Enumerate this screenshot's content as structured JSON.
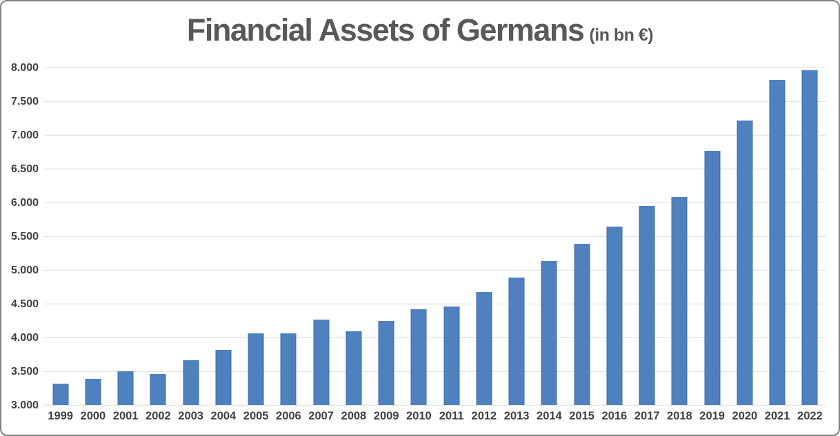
{
  "title": {
    "main": "Financial Assets of Germans",
    "sub": "(in bn €)"
  },
  "colors": {
    "bar": "#4e81bd",
    "bar_edge": "#3c6da8",
    "grid": "#dcdcdc",
    "text": "#404040",
    "title": "#595959",
    "frame_border": "#7f7f7f"
  },
  "chart_data": {
    "type": "bar",
    "title": "Financial Assets of Germans (in bn €)",
    "xlabel": "",
    "ylabel": "",
    "categories": [
      "1999",
      "2000",
      "2001",
      "2002",
      "2003",
      "2004",
      "2005",
      "2006",
      "2007",
      "2008",
      "2009",
      "2010",
      "2011",
      "2012",
      "2013",
      "2014",
      "2015",
      "2016",
      "2017",
      "2018",
      "2019",
      "2020",
      "2021",
      "2022"
    ],
    "values": [
      3320,
      3390,
      3500,
      3460,
      3660,
      3820,
      4060,
      4060,
      4270,
      4090,
      4250,
      4420,
      4460,
      4670,
      4890,
      5130,
      5390,
      5640,
      5950,
      6080,
      6770,
      7210,
      7820,
      7960
    ],
    "ylim": [
      3000,
      8000
    ],
    "ytick_step": 500,
    "ytick_labels": [
      "3.000",
      "3.500",
      "4.000",
      "4.500",
      "5.000",
      "5.500",
      "6.000",
      "6.500",
      "7.000",
      "7.500",
      "8.000"
    ],
    "grid": true,
    "legend": false
  }
}
